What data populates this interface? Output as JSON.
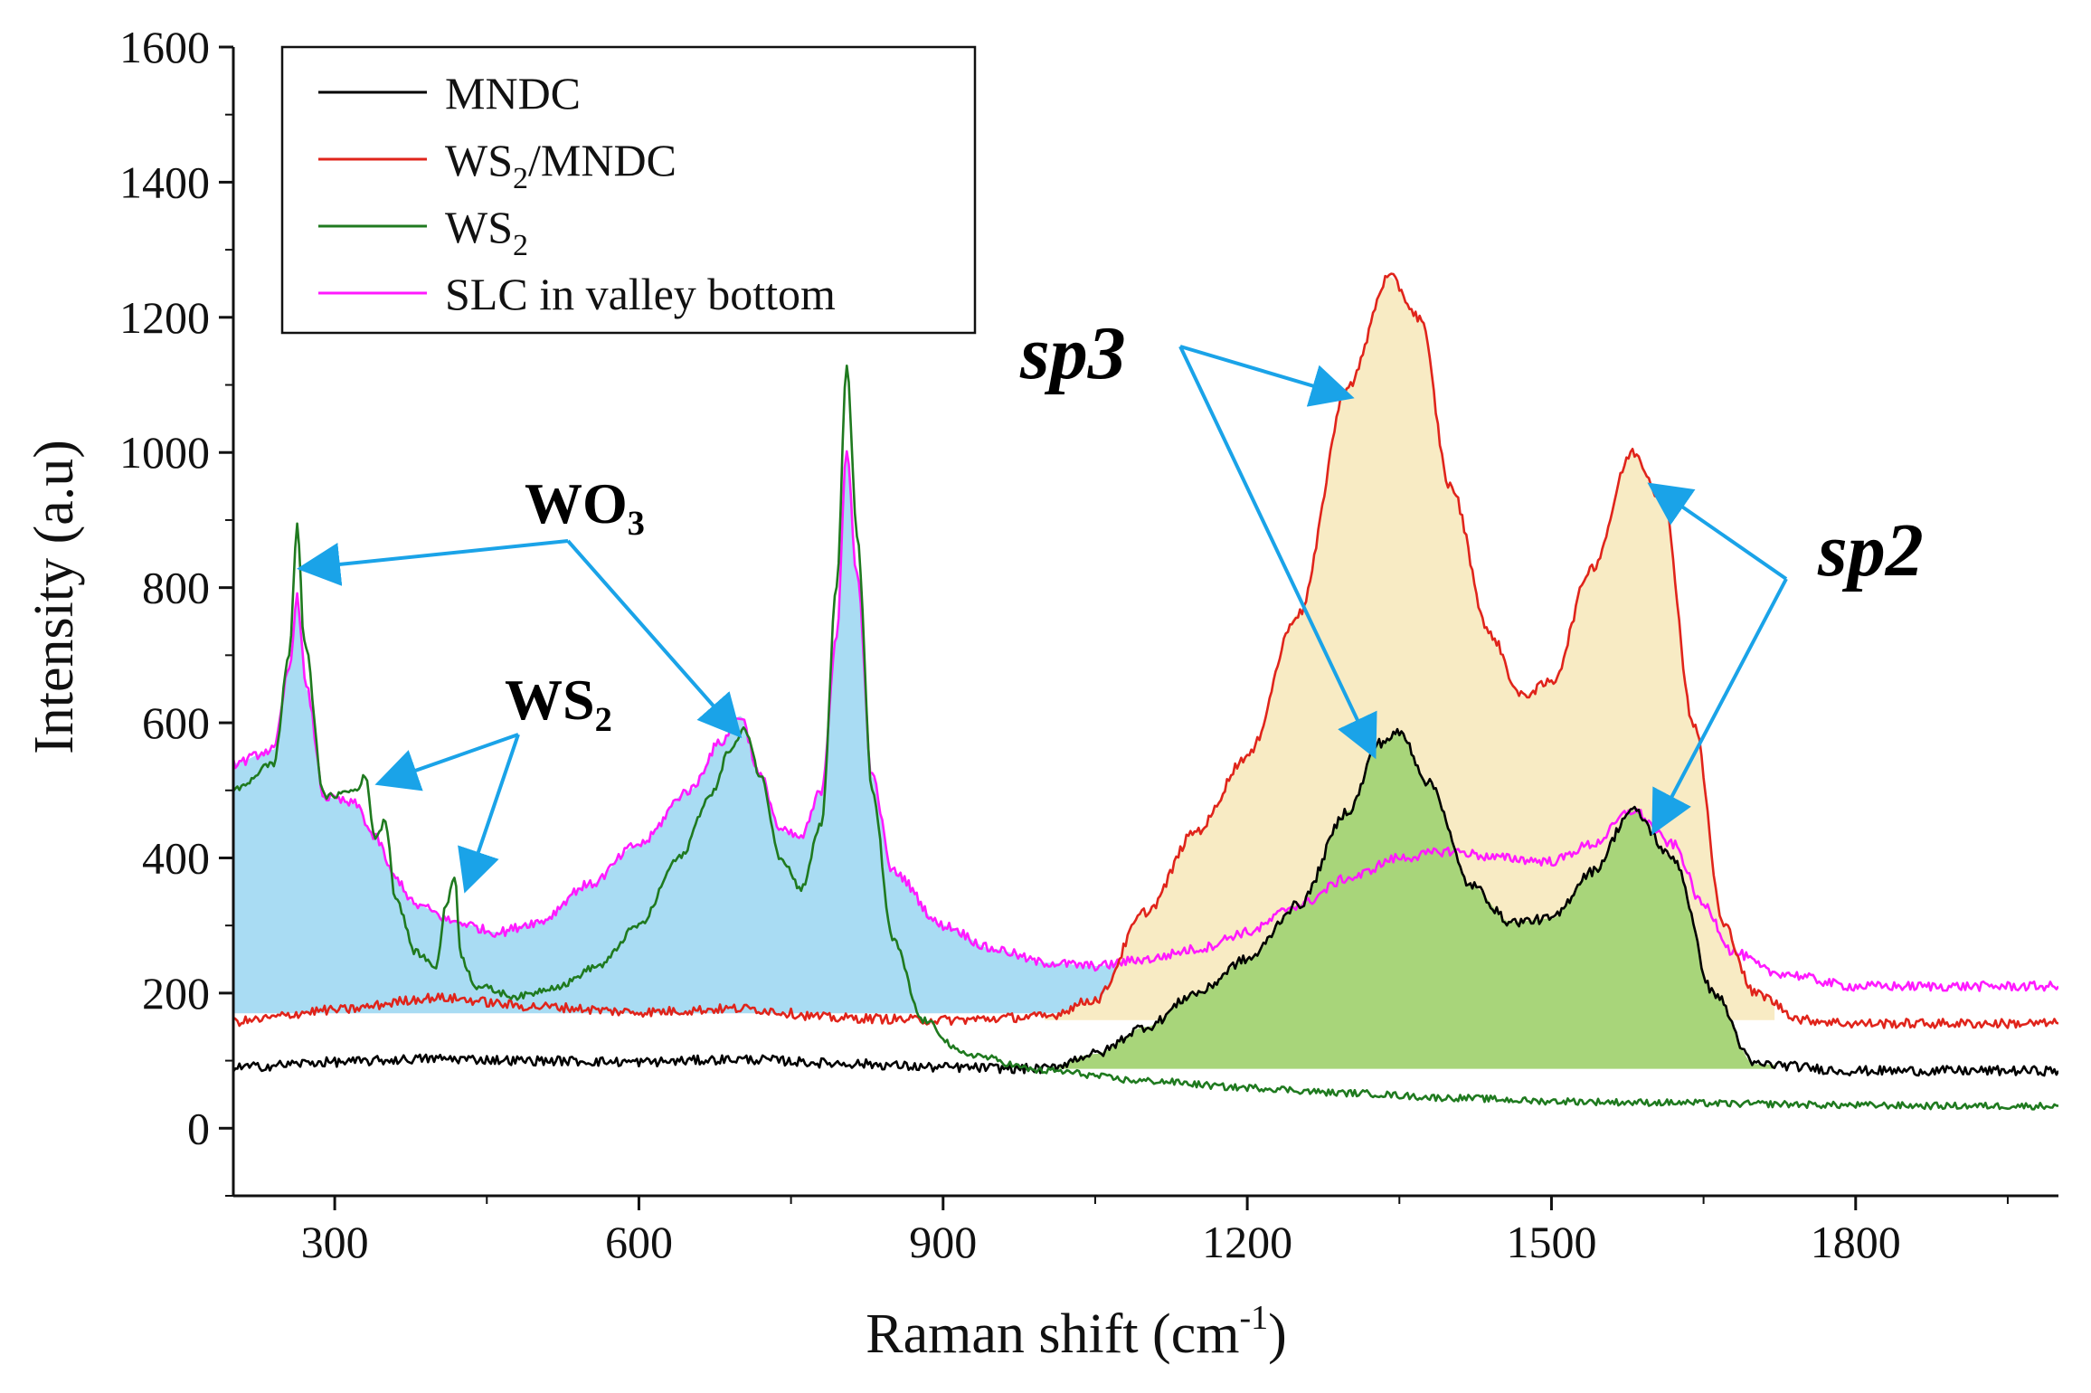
{
  "chart_data": {
    "type": "line",
    "title": "",
    "xlabel": "Raman shift (cm",
    "xlabel_sup": "-1",
    "xlabel_close": ")",
    "ylabel": "Intensity (a.u)",
    "xlim": [
      200,
      2000
    ],
    "ylim": [
      -100,
      1600
    ],
    "x_ticks": [
      300,
      600,
      900,
      1200,
      1500,
      1800
    ],
    "y_ticks": [
      0,
      200,
      400,
      600,
      800,
      1000,
      1200,
      1400,
      1600
    ],
    "x_tick_labels": [
      "300",
      "600",
      "900",
      "1200",
      "1500",
      "1800"
    ],
    "y_tick_labels": [
      "0",
      "200",
      "400",
      "600",
      "800",
      "1000",
      "1200",
      "1400",
      "1600"
    ],
    "legend_position": "top-left",
    "series": [
      {
        "name": "MNDC",
        "color": "#000000",
        "x": [
          200,
          300,
          400,
          500,
          600,
          700,
          800,
          900,
          1000,
          1050,
          1100,
          1150,
          1200,
          1250,
          1300,
          1330,
          1350,
          1380,
          1420,
          1460,
          1500,
          1540,
          1580,
          1620,
          1660,
          1700,
          1800,
          1900,
          2000
        ],
        "y": [
          90,
          98,
          103,
          100,
          98,
          102,
          96,
          90,
          88,
          110,
          150,
          200,
          250,
          330,
          470,
          570,
          585,
          510,
          360,
          305,
          310,
          380,
          470,
          400,
          200,
          95,
          85,
          85,
          85
        ]
      },
      {
        "name": "WS2/MNDC",
        "color": "#e0241b",
        "x": [
          200,
          300,
          400,
          500,
          600,
          700,
          800,
          900,
          1000,
          1050,
          1100,
          1150,
          1200,
          1250,
          1300,
          1340,
          1370,
          1400,
          1440,
          1470,
          1500,
          1540,
          1580,
          1610,
          1640,
          1670,
          1700,
          1750,
          1800,
          1900,
          2000
        ],
        "y": [
          158,
          175,
          193,
          180,
          172,
          177,
          163,
          160,
          165,
          190,
          320,
          440,
          550,
          760,
          1100,
          1260,
          1200,
          950,
          730,
          640,
          660,
          830,
          1000,
          930,
          600,
          300,
          200,
          160,
          155,
          155,
          155
        ]
      },
      {
        "name": "WS2",
        "color": "#1f7a1f",
        "x": [
          200,
          240,
          255,
          263,
          270,
          290,
          320,
          330,
          340,
          350,
          360,
          380,
          400,
          410,
          418,
          425,
          440,
          480,
          520,
          560,
          600,
          640,
          670,
          690,
          705,
          720,
          740,
          760,
          780,
          795,
          805,
          815,
          830,
          850,
          880,
          920,
          1000,
          1100,
          1200,
          1300,
          1400,
          1500,
          1600,
          1700,
          1800,
          1900,
          2000
        ],
        "y": [
          500,
          540,
          700,
          890,
          720,
          490,
          500,
          520,
          430,
          455,
          340,
          260,
          240,
          330,
          375,
          250,
          210,
          195,
          210,
          240,
          300,
          400,
          490,
          560,
          590,
          520,
          400,
          355,
          450,
          800,
          1130,
          880,
          500,
          280,
          160,
          110,
          85,
          70,
          60,
          52,
          45,
          40,
          38,
          36,
          34,
          33,
          33
        ]
      },
      {
        "name": "SLC in valley bottom",
        "color": "#ff1aff",
        "x": [
          200,
          240,
          255,
          263,
          272,
          290,
          320,
          340,
          360,
          380,
          420,
          460,
          500,
          550,
          600,
          650,
          680,
          700,
          720,
          740,
          760,
          780,
          795,
          805,
          815,
          830,
          850,
          900,
          950,
          1000,
          1050,
          1100,
          1150,
          1200,
          1250,
          1300,
          1350,
          1400,
          1450,
          1500,
          1540,
          1580,
          1620,
          1650,
          1680,
          1720,
          1800,
          1900,
          2000
        ],
        "y": [
          540,
          560,
          680,
          785,
          650,
          490,
          480,
          430,
          370,
          330,
          305,
          290,
          305,
          360,
          420,
          500,
          570,
          610,
          520,
          440,
          430,
          500,
          730,
          1000,
          820,
          520,
          380,
          300,
          265,
          245,
          240,
          250,
          265,
          290,
          330,
          370,
          400,
          410,
          400,
          395,
          420,
          470,
          420,
          330,
          260,
          230,
          210,
          210,
          210
        ]
      }
    ],
    "annotations": {
      "wo3": "WO₃",
      "ws2": "WS₂",
      "sp3": "sp3",
      "sp2": "sp2"
    }
  },
  "legend_entries": [
    {
      "base": "MNDC",
      "sub": "",
      "tail": ""
    },
    {
      "base": "WS",
      "sub": "2",
      "tail": "/MNDC"
    },
    {
      "base": "WS",
      "sub": "2",
      "tail": ""
    },
    {
      "base": "SLC in valley bottom",
      "sub": "",
      "tail": ""
    }
  ],
  "colors": {
    "fill_blue": "#a9dcf3",
    "fill_yellow": "#f8ebc4",
    "fill_green": "#a8d57a",
    "arrow": "#1aa3e8"
  }
}
